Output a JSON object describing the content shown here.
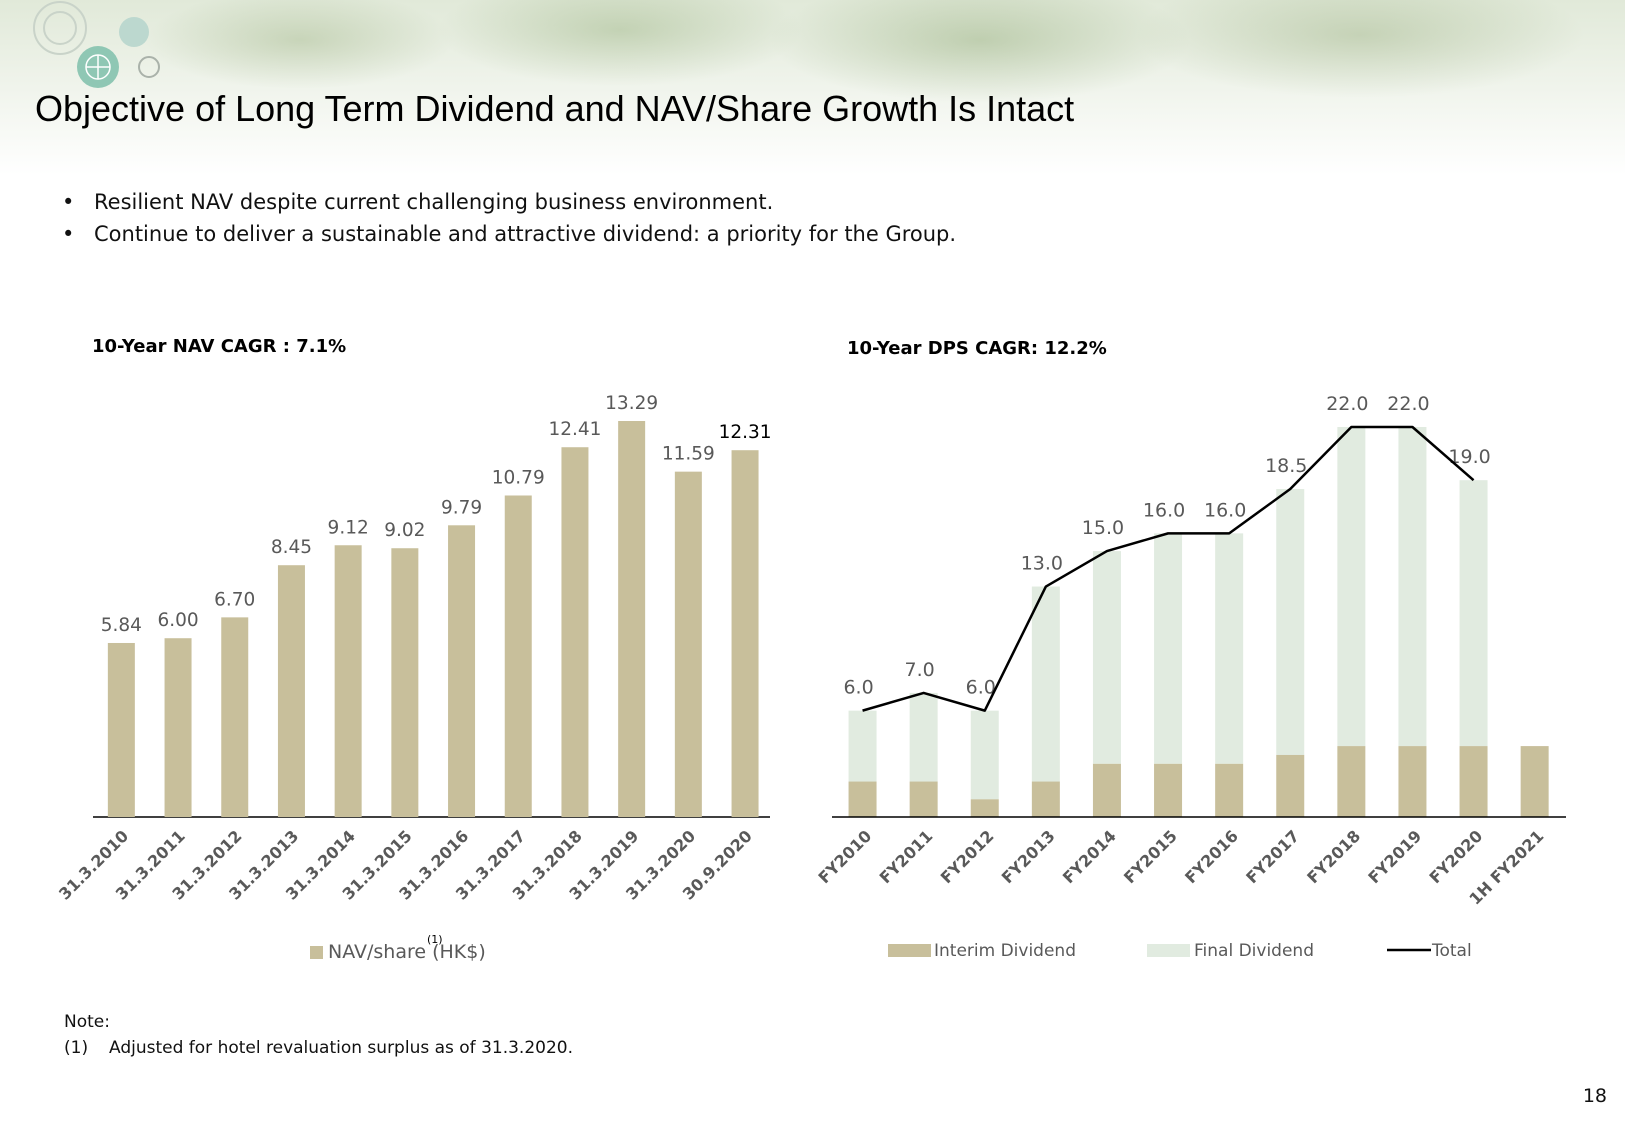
{
  "header": {
    "title": "Objective of Long Term Dividend and NAV/Share Growth Is Intact"
  },
  "bullets": [
    "Resilient NAV despite current challenging business environment.",
    "Continue to deliver a sustainable and attractive dividend: a priority for the Group."
  ],
  "colors": {
    "nav_bar": "#c8bf9b",
    "interim": "#c8bf9b",
    "final": "#e1ebe0",
    "total_line": "#000000",
    "label_grey": "#595959"
  },
  "chart_data": [
    {
      "type": "bar",
      "title": "10-Year NAV CAGR : 7.1%",
      "categories": [
        "31.3.2010",
        "31.3.2011",
        "31.3.2012",
        "31.3.2013",
        "31.3.2014",
        "31.3.2015",
        "31.3.2016",
        "31.3.2017",
        "31.3.2018",
        "31.3.2019",
        "31.3.2020",
        "30.9.2020"
      ],
      "series": [
        {
          "name": "NAV/share (HK$)",
          "values": [
            5.84,
            6.0,
            6.7,
            8.45,
            9.12,
            9.02,
            9.79,
            10.79,
            12.41,
            13.29,
            11.59,
            12.31
          ],
          "labels": [
            "5.84",
            "6.00",
            "6.70",
            "8.45",
            "9.12",
            "9.02",
            "9.79",
            "10.79",
            "12.41",
            "13.29",
            "11.59",
            "12.31"
          ]
        }
      ],
      "footnote_marker": "(1)",
      "ylim": [
        0,
        13.29
      ],
      "legend": "bottom",
      "grid": false
    },
    {
      "type": "bar",
      "title": "10-Year DPS CAGR: 12.2%",
      "categories": [
        "FY2010",
        "FY2011",
        "FY2012",
        "FY2013",
        "FY2014",
        "FY2015",
        "FY2016",
        "FY2017",
        "FY2018",
        "FY2019",
        "FY2020",
        "1H FY2021"
      ],
      "series": [
        {
          "name": "Interim Dividend",
          "values": [
            2.0,
            2.0,
            1.0,
            2.0,
            3.0,
            3.0,
            3.0,
            3.5,
            4.0,
            4.0,
            4.0,
            4.0
          ]
        },
        {
          "name": "Final Dividend",
          "values": [
            4.0,
            5.0,
            5.0,
            11.0,
            12.0,
            13.0,
            13.0,
            15.0,
            18.0,
            18.0,
            15.0,
            null
          ]
        },
        {
          "name": "Total",
          "values": [
            6.0,
            7.0,
            6.0,
            13.0,
            15.0,
            16.0,
            16.0,
            18.5,
            22.0,
            22.0,
            19.0,
            null
          ],
          "labels": [
            "6.0",
            "7.0",
            "6.0",
            "13.0",
            "15.0",
            "16.0",
            "16.0",
            "18.5",
            "22.0",
            "22.0",
            "19.0",
            ""
          ]
        }
      ],
      "ylim": [
        0,
        22.0
      ],
      "stacked": true,
      "legend": "bottom",
      "grid": false
    }
  ],
  "note": {
    "heading": "Note:",
    "items": [
      {
        "marker": "(1)",
        "text": "Adjusted for hotel revaluation surplus as of 31.3.2020."
      }
    ]
  },
  "page_number": "18"
}
